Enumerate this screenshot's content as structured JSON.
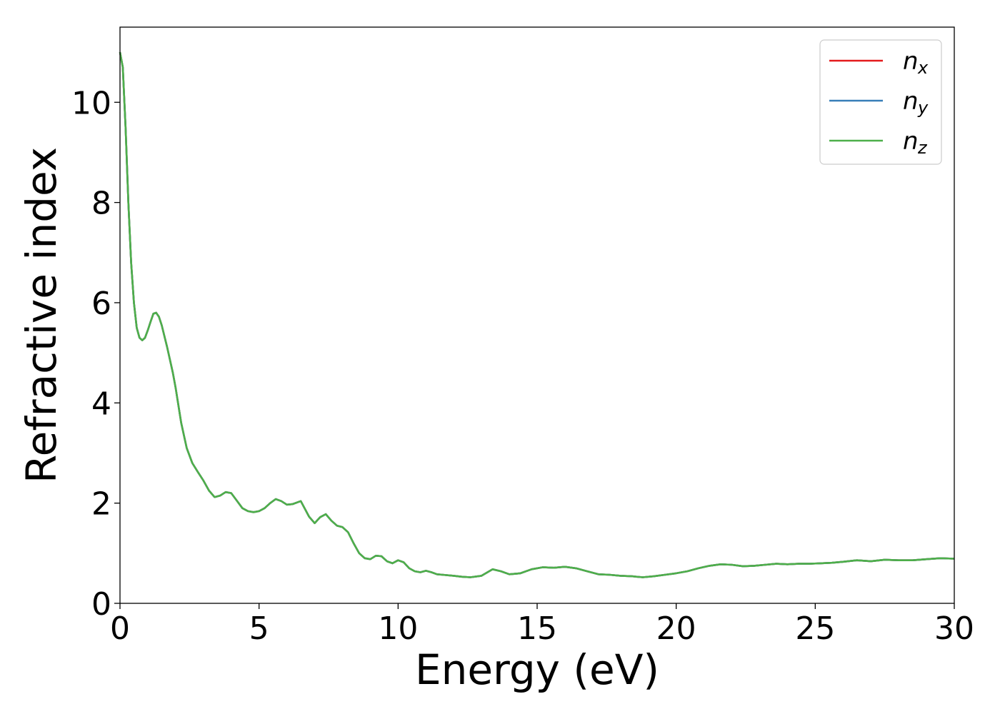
{
  "chart_data": {
    "type": "line",
    "title": "",
    "xlabel": "Energy (eV)",
    "ylabel": "Refractive index",
    "xlim": [
      0,
      30
    ],
    "ylim": [
      0,
      11.5
    ],
    "xticks": [
      0,
      5,
      10,
      15,
      20,
      25,
      30
    ],
    "xtick_labels": [
      "0",
      "5",
      "10",
      "15",
      "20",
      "25",
      "30"
    ],
    "yticks": [
      0,
      2,
      4,
      6,
      8,
      10
    ],
    "ytick_labels": [
      "0",
      "2",
      "4",
      "6",
      "8",
      "10"
    ],
    "grid": false,
    "legend_position": "top-right",
    "series": [
      {
        "name": "n_x",
        "label_base": "n",
        "label_sub": "x",
        "color": "#e41a1c"
      },
      {
        "name": "n_y",
        "label_base": "n",
        "label_sub": "y",
        "color": "#377eb8"
      },
      {
        "name": "n_z",
        "label_base": "n",
        "label_sub": "z",
        "color": "#4daf4a"
      }
    ],
    "x": [
      0,
      0.1,
      0.2,
      0.3,
      0.4,
      0.5,
      0.6,
      0.7,
      0.8,
      0.9,
      1.0,
      1.1,
      1.2,
      1.3,
      1.4,
      1.5,
      1.7,
      1.9,
      2.0,
      2.2,
      2.4,
      2.6,
      2.8,
      3.0,
      3.2,
      3.4,
      3.6,
      3.8,
      4.0,
      4.2,
      4.4,
      4.6,
      4.8,
      5.0,
      5.2,
      5.4,
      5.6,
      5.8,
      6.0,
      6.2,
      6.5,
      6.8,
      7.0,
      7.2,
      7.4,
      7.6,
      7.8,
      8.0,
      8.2,
      8.4,
      8.6,
      8.8,
      9.0,
      9.2,
      9.4,
      9.6,
      9.8,
      10.0,
      10.2,
      10.4,
      10.6,
      10.8,
      11.0,
      11.2,
      11.4,
      11.6,
      12.0,
      12.3,
      12.6,
      13.0,
      13.4,
      13.7,
      14.0,
      14.4,
      14.8,
      15.2,
      15.6,
      16.0,
      16.4,
      16.8,
      17.2,
      17.6,
      18.0,
      18.4,
      18.8,
      19.2,
      19.6,
      20.0,
      20.4,
      20.8,
      21.2,
      21.6,
      22.0,
      22.4,
      22.8,
      23.2,
      23.6,
      24.0,
      24.4,
      24.8,
      25.2,
      25.6,
      26.0,
      26.5,
      27.0,
      27.5,
      28.0,
      28.5,
      29.0,
      29.5,
      30.0
    ],
    "values": [
      11.0,
      10.7,
      9.5,
      8.0,
      6.8,
      6.0,
      5.5,
      5.3,
      5.25,
      5.3,
      5.45,
      5.62,
      5.78,
      5.8,
      5.72,
      5.55,
      5.1,
      4.6,
      4.3,
      3.6,
      3.1,
      2.8,
      2.62,
      2.45,
      2.25,
      2.12,
      2.15,
      2.22,
      2.2,
      2.05,
      1.9,
      1.84,
      1.82,
      1.84,
      1.9,
      2.0,
      2.08,
      2.04,
      1.97,
      1.98,
      2.04,
      1.73,
      1.6,
      1.72,
      1.78,
      1.65,
      1.55,
      1.52,
      1.42,
      1.2,
      1.0,
      0.9,
      0.88,
      0.95,
      0.94,
      0.84,
      0.8,
      0.86,
      0.82,
      0.7,
      0.64,
      0.62,
      0.65,
      0.62,
      0.58,
      0.57,
      0.55,
      0.53,
      0.52,
      0.55,
      0.68,
      0.64,
      0.58,
      0.6,
      0.68,
      0.72,
      0.71,
      0.73,
      0.7,
      0.64,
      0.58,
      0.57,
      0.55,
      0.54,
      0.52,
      0.54,
      0.57,
      0.6,
      0.64,
      0.7,
      0.75,
      0.78,
      0.77,
      0.74,
      0.75,
      0.77,
      0.79,
      0.78,
      0.79,
      0.79,
      0.8,
      0.81,
      0.83,
      0.86,
      0.84,
      0.87,
      0.86,
      0.86,
      0.88,
      0.9,
      0.89
    ]
  }
}
